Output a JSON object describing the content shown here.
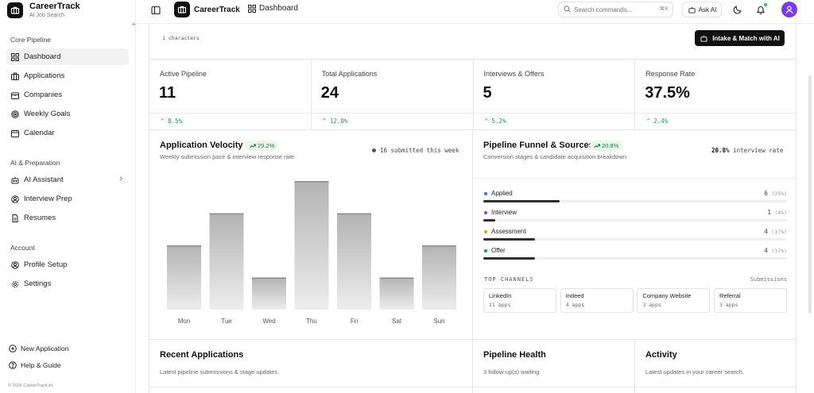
{
  "sidebar": {
    "brand_name": "CareerTrack",
    "brand_sub": "AI Job Search",
    "sections": [
      {
        "label": "Core Pipeline",
        "items": [
          {
            "label": "Dashboard",
            "icon": "grid-icon",
            "active": true
          },
          {
            "label": "Applications",
            "icon": "briefcase-icon"
          },
          {
            "label": "Companies",
            "icon": "building-icon"
          },
          {
            "label": "Weekly Goals",
            "icon": "target-icon"
          },
          {
            "label": "Calendar",
            "icon": "calendar-icon"
          }
        ]
      },
      {
        "label": "AI & Preparation",
        "items": [
          {
            "label": "AI Assistant",
            "icon": "bot-icon"
          },
          {
            "label": "Interview Prep",
            "icon": "users-icon"
          },
          {
            "label": "Resumes",
            "icon": "document-icon"
          }
        ]
      },
      {
        "label": "Account",
        "items": [
          {
            "label": "Profile Setup",
            "icon": "user-icon"
          },
          {
            "label": "Settings",
            "icon": "gear-icon"
          }
        ]
      }
    ],
    "footer": {
      "new_application": "New Application",
      "help": "Help & Guide",
      "copyright": "© 2026 CareerTrack AI"
    }
  },
  "topbar": {
    "title": "CareerTrack",
    "breadcrumb": "Dashboard",
    "search_placeholder": "Search commands...",
    "search_shortcut": "⌘K",
    "ask_ai": "Ask AI"
  },
  "main": {
    "char_count": "1 characters",
    "intake_button": "Intake & Match with AI",
    "stats": [
      {
        "label": "Active Pipeline",
        "value": "11",
        "delta": "8.5%"
      },
      {
        "label": "Total Applications",
        "value": "24",
        "delta": "12.0%"
      },
      {
        "label": "Interviews & Offers",
        "value": "5",
        "delta": "5.2%"
      },
      {
        "label": "Response Rate",
        "value": "37.5%",
        "delta": "2.4%"
      }
    ],
    "velocity": {
      "title": "Application Velocity",
      "badge": "29.2%",
      "subtitle": "Weekly submission pace & interview response rate",
      "submitted": "16 submitted this week"
    },
    "funnel": {
      "title": "Pipeline Funnel & Sources",
      "badge": "20.8%",
      "subtitle": "Conversion stages & candidate acquisition breakdown",
      "rate_value": "20.8%",
      "rate_label": "interview rate",
      "stages": [
        {
          "name": "Applied",
          "count": "6",
          "pct": "(25%)",
          "fill": 0.25,
          "color": "#3b6fe0"
        },
        {
          "name": "Interview",
          "count": "1",
          "pct": "(4%)",
          "fill": 0.04,
          "color": "#7c4ddb"
        },
        {
          "name": "Assessment",
          "count": "4",
          "pct": "(17%)",
          "fill": 0.17,
          "color": "#e0a020"
        },
        {
          "name": "Offer",
          "count": "4",
          "pct": "(17%)",
          "fill": 0.17,
          "color": "#16a34a"
        }
      ],
      "channels_label": "TOP CHANNELS",
      "channels_right": "Submissions",
      "channels": [
        {
          "name": "LinkedIn",
          "count": "11 apps"
        },
        {
          "name": "Indeed",
          "count": "4 apps"
        },
        {
          "name": "Company Website",
          "count": "3 apps"
        },
        {
          "name": "Referral",
          "count": "3 apps"
        }
      ]
    },
    "bottom": [
      {
        "title": "Recent Applications",
        "sub": "Latest pipeline submissions & stage updates."
      },
      {
        "title": "Pipeline Health",
        "sub": "3 follow-up(s) waiting"
      },
      {
        "title": "Activity",
        "sub": "Latest updates in your career search."
      }
    ]
  },
  "chart_data": {
    "type": "bar",
    "categories": [
      "Mon",
      "Tue",
      "Wed",
      "Thu",
      "Fri",
      "Sat",
      "Sun"
    ],
    "values": [
      2,
      3,
      1,
      4,
      3,
      1,
      2
    ],
    "ylim": [
      0,
      4.15
    ],
    "grid": false,
    "colors": {
      "top": "#b3b3b3",
      "bottom": "#ededed",
      "cap": "#8c8c8c"
    }
  }
}
